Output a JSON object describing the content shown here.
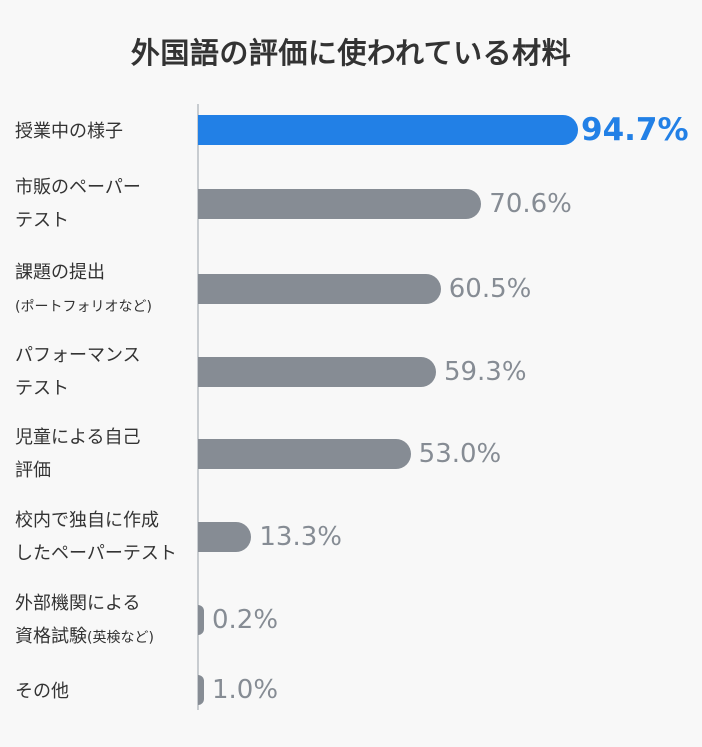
{
  "title": "外国語の評価に使われている材料",
  "colors": {
    "highlight": "#2280e6",
    "default_bar": "#868c94",
    "default_value": "#868c94",
    "axis": "#c8ccd0",
    "text": "#333333",
    "background": "#f8f8f8"
  },
  "chart_data": {
    "type": "bar",
    "orientation": "horizontal",
    "title": "外国語の評価に使われている材料",
    "xlabel": "",
    "ylabel": "",
    "unit": "%",
    "xlim": [
      0,
      100
    ],
    "grid": false,
    "legend": null,
    "categories": [
      "授業中の様子",
      "市販のペーパーテスト",
      "課題の提出(ポートフォリオなど)",
      "パフォーマンステスト",
      "児童による自己評価",
      "校内で独自に作成したペーパーテスト",
      "外部機関による資格試験(英検など)",
      "その他"
    ],
    "values": [
      94.7,
      70.6,
      60.5,
      59.3,
      53.0,
      13.3,
      0.2,
      1.0
    ],
    "value_labels": [
      "94.7%",
      "70.6%",
      "60.5%",
      "59.3%",
      "53.0%",
      "13.3%",
      "0.2%",
      "1.0%"
    ],
    "highlighted_index": 0
  },
  "rows": [
    {
      "line1": "授業中の様子",
      "line2": "",
      "line2_small": "",
      "value_label": "94.7%"
    },
    {
      "line1": "市販のペーパー",
      "line2": "テスト",
      "line2_small": "",
      "value_label": "70.6%"
    },
    {
      "line1": "課題の提出",
      "line2": "",
      "line2_small": "(ポートフォリオなど)",
      "value_label": "60.5%"
    },
    {
      "line1": "パフォーマンス",
      "line2": "テスト",
      "line2_small": "",
      "value_label": "59.3%"
    },
    {
      "line1": "児童による自己",
      "line2": "評価",
      "line2_small": "",
      "value_label": "53.0%"
    },
    {
      "line1": "校内で独自に作成",
      "line2": "したペーパーテスト",
      "line2_small": "",
      "value_label": "13.3%"
    },
    {
      "line1": "外部機関による",
      "line2": "資格試験",
      "line2_small": "(英検など)",
      "value_label": "0.2%"
    },
    {
      "line1": "その他",
      "line2": "",
      "line2_small": "",
      "value_label": "1.0%"
    }
  ]
}
